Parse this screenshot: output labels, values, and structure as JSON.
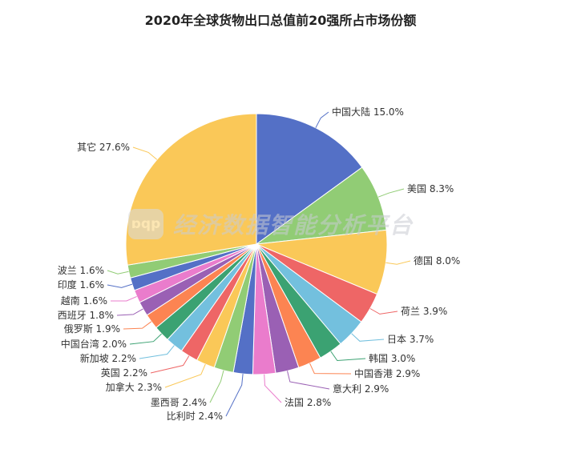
{
  "chart_data": {
    "type": "pie",
    "title": "2020年全球货物出口总值前20强所占市场份额",
    "unit": "%",
    "slices": [
      {
        "label": "中国大陆",
        "value": 15.0,
        "color": "#5470c6"
      },
      {
        "label": "美国",
        "value": 8.3,
        "color": "#91cc75"
      },
      {
        "label": "德国",
        "value": 8.0,
        "color": "#fac858"
      },
      {
        "label": "荷兰",
        "value": 3.9,
        "color": "#ee6666"
      },
      {
        "label": "日本",
        "value": 3.7,
        "color": "#73c0de"
      },
      {
        "label": "韩国",
        "value": 3.0,
        "color": "#3ba272"
      },
      {
        "label": "中国香港",
        "value": 2.9,
        "color": "#fc8452"
      },
      {
        "label": "意大利",
        "value": 2.9,
        "color": "#9a60b4"
      },
      {
        "label": "法国",
        "value": 2.8,
        "color": "#ea7ccc"
      },
      {
        "label": "比利时",
        "value": 2.4,
        "color": "#5470c6"
      },
      {
        "label": "墨西哥",
        "value": 2.4,
        "color": "#91cc75"
      },
      {
        "label": "加拿大",
        "value": 2.3,
        "color": "#fac858"
      },
      {
        "label": "英国",
        "value": 2.2,
        "color": "#ee6666"
      },
      {
        "label": "新加坡",
        "value": 2.2,
        "color": "#73c0de"
      },
      {
        "label": "中国台湾",
        "value": 2.0,
        "color": "#3ba272"
      },
      {
        "label": "俄罗斯",
        "value": 1.9,
        "color": "#fc8452"
      },
      {
        "label": "西班牙",
        "value": 1.8,
        "color": "#9a60b4"
      },
      {
        "label": "越南",
        "value": 1.6,
        "color": "#ea7ccc"
      },
      {
        "label": "印度",
        "value": 1.6,
        "color": "#5470c6"
      },
      {
        "label": "波兰",
        "value": 1.6,
        "color": "#91cc75"
      },
      {
        "label": "其它",
        "value": 27.6,
        "color": "#fac858"
      }
    ]
  },
  "watermark": {
    "logo_text": "ɒqp",
    "text": "经济数据智能分析平台"
  }
}
